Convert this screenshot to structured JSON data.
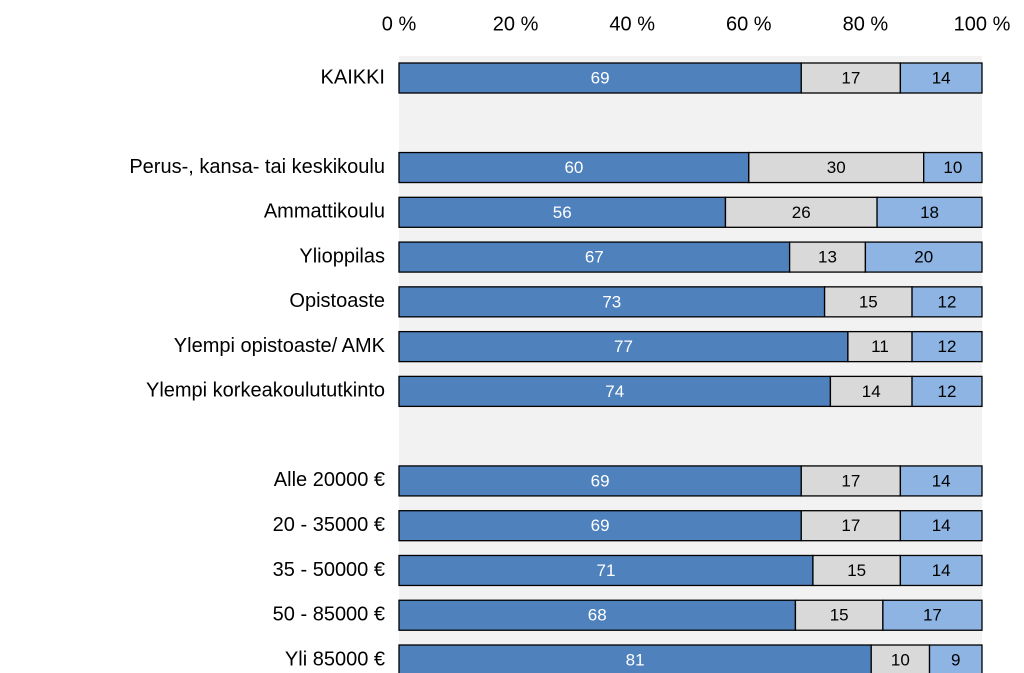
{
  "chart_data": {
    "type": "stacked-bar-horizontal",
    "categories": [
      "KAIKKI",
      null,
      "Perus-, kansa- tai keskikoulu",
      "Ammattikoulu",
      "Ylioppilas",
      "Opistoaste",
      "Ylempi opistoaste/ AMK",
      "Ylempi korkeakoulututkinto",
      null,
      "Alle 20000 €",
      "20 - 35000 €",
      "35 - 50000 €",
      "50 - 85000 €",
      "Yli 85000 €"
    ],
    "series": [
      {
        "color": "#4f81bd",
        "values": [
          69,
          null,
          60,
          56,
          67,
          73,
          77,
          74,
          null,
          69,
          69,
          71,
          68,
          81
        ]
      },
      {
        "color": "#d9d9d9",
        "values": [
          17,
          null,
          30,
          26,
          13,
          15,
          11,
          14,
          null,
          17,
          17,
          15,
          15,
          10
        ]
      },
      {
        "color": "#8db4e2",
        "values": [
          14,
          null,
          10,
          18,
          20,
          12,
          12,
          12,
          null,
          14,
          14,
          14,
          17,
          9
        ]
      }
    ],
    "xlim": [
      0,
      100
    ],
    "xticks": [
      {
        "value": 0,
        "label": "0 %"
      },
      {
        "value": 20,
        "label": "20 %"
      },
      {
        "value": 40,
        "label": "40 %"
      },
      {
        "value": 60,
        "label": "60 %"
      },
      {
        "value": 80,
        "label": "80 %"
      },
      {
        "value": 100,
        "label": "100 %"
      }
    ]
  }
}
